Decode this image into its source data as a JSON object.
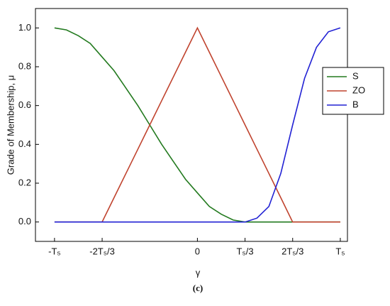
{
  "chart_data": {
    "type": "line",
    "caption": "(c)",
    "xlabel": "γ",
    "ylabel": "Grade of Membership, μ",
    "x": [
      -3,
      -2.75,
      -2.5,
      -2.25,
      -2,
      -1.75,
      -1.5,
      -1.25,
      -1,
      -0.75,
      -0.5,
      -0.25,
      0,
      0.25,
      0.5,
      0.75,
      1,
      1.25,
      1.5,
      1.75,
      2,
      2.25,
      2.5,
      2.75,
      3
    ],
    "series": [
      {
        "name": "S",
        "color": "#237a1f",
        "values": [
          1,
          0.99,
          0.96,
          0.92,
          0.85,
          0.78,
          0.69,
          0.6,
          0.5,
          0.4,
          0.31,
          0.22,
          0.15,
          0.08,
          0.04,
          0.01,
          0,
          0,
          0,
          0,
          0,
          0,
          0,
          0,
          0
        ]
      },
      {
        "name": "ZO",
        "color": "#c0432e",
        "values": [
          0,
          0,
          0,
          0,
          0,
          0.125,
          0.25,
          0.375,
          0.5,
          0.625,
          0.75,
          0.875,
          1,
          0.875,
          0.75,
          0.625,
          0.5,
          0.375,
          0.25,
          0.125,
          0,
          0,
          0,
          0,
          0
        ]
      },
      {
        "name": "B",
        "color": "#2222d4",
        "values": [
          0,
          0,
          0,
          0,
          0,
          0,
          0,
          0,
          0,
          0,
          0,
          0,
          0,
          0,
          0,
          0,
          0,
          0.02,
          0.08,
          0.25,
          0.5,
          0.74,
          0.9,
          0.98,
          1
        ]
      }
    ],
    "xlim": [
      -3.4,
      3.15
    ],
    "xticks": [
      {
        "value": -3,
        "label": "-T₅"
      },
      {
        "value": -2,
        "label": "-2T₅/3"
      },
      0,
      {
        "value": 1,
        "label": "T₅/3"
      },
      {
        "value": 2,
        "label": "2T₅/3"
      },
      {
        "value": 3,
        "label": "T₅"
      }
    ],
    "ylim": [
      -0.1,
      1.1
    ],
    "yticks": [
      {
        "value": 0,
        "label": "0.0"
      },
      0.2,
      0.4,
      0.6,
      0.8,
      {
        "value": 1,
        "label": "1.0"
      }
    ],
    "grid": false,
    "legend": "upper right"
  }
}
